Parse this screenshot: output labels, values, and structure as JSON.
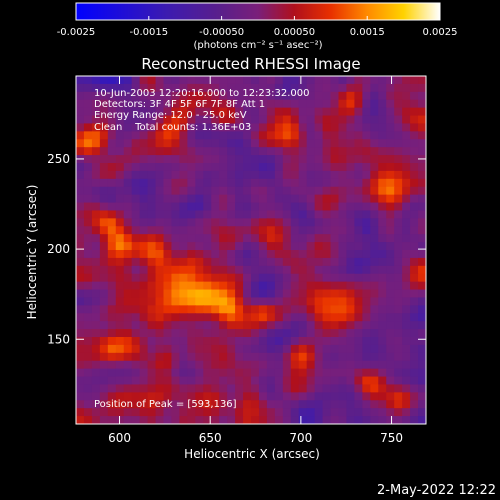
{
  "chart_data": {
    "type": "heatmap",
    "title": "Reconstructed RHESSI Image",
    "xlabel": "Heliocentric X (arcsec)",
    "ylabel": "Heliocentric Y (arcsec)",
    "xlim": [
      576,
      769
    ],
    "ylim": [
      103,
      296
    ],
    "x_ticks": [
      600,
      650,
      700,
      750
    ],
    "y_ticks": [
      150,
      200,
      250
    ],
    "colorbar": {
      "range": [
        -0.0025,
        0.0025
      ],
      "ticks": [
        "-0.0025",
        "-0.0015",
        "-0.00050",
        "0.00050",
        "0.0015",
        "0.0025"
      ],
      "label": "(photons cm⁻² s⁻¹ asec⁻²)",
      "colors": [
        "#0000ff",
        "#3c1bb0",
        "#5b1f8a",
        "#7a1f7a",
        "#b0101c",
        "#e83000",
        "#ff8a00",
        "#ffd200",
        "#ffffff"
      ]
    },
    "annotations": [
      "10-Jun-2003 12:20:16.000 to 12:23:32.000",
      "Detectors: 3F 4F 5F 6F 7F 8F Att 1",
      "Energy Range: 12.0 - 25.0 keV",
      "Clean    Total counts: 1.36E+03"
    ],
    "peak_label": "Position of Peak = [593,136]",
    "grid": false,
    "seed": 20030610
  },
  "footer": {
    "timestamp": "2-May-2022 12:22"
  }
}
